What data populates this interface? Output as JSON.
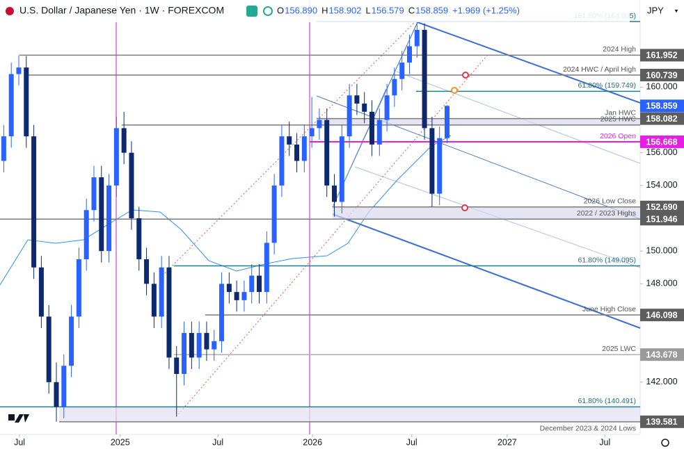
{
  "header": {
    "title": "U.S. Dollar / Japanese Yen · 1W · FOREXCOM",
    "ohlc": [
      {
        "key": "O",
        "value": "156.890"
      },
      {
        "key": "H",
        "value": "158.902"
      },
      {
        "key": "L",
        "value": "156.579"
      },
      {
        "key": "C",
        "value": "158.859"
      }
    ],
    "change": "+1.969 (+1.25%)",
    "currency": "JPY"
  },
  "chart_data": {
    "type": "candlestick",
    "open": [
      155.5,
      157,
      160.8,
      161.2,
      157,
      149,
      146,
      142,
      140.5,
      143,
      146,
      149.5,
      152.5,
      154.5,
      150,
      154,
      157.5,
      156,
      152,
      149.5,
      148,
      146,
      149,
      143.5,
      142.5,
      145,
      143.5,
      145,
      144,
      144.5,
      148,
      147.5,
      147,
      147.5,
      148.5,
      147.5,
      150.5,
      154,
      157,
      156.5,
      155.5,
      157,
      157.5,
      158,
      154,
      153,
      157,
      159.5,
      159,
      158.5,
      156.5,
      158,
      159.5,
      160.5,
      161.5,
      162.5,
      163.5,
      157.5,
      153.5,
      156.89
    ],
    "high": [
      157.7,
      161.5,
      161.952,
      161.9,
      157.7,
      149.7,
      146.7,
      143.2,
      143.7,
      146.7,
      150.2,
      153.2,
      155.2,
      155.2,
      154.7,
      158.2,
      158.5,
      156.7,
      152.7,
      150.2,
      148.7,
      149.7,
      149.7,
      144.2,
      145.7,
      145.7,
      145.7,
      145.7,
      145.2,
      148.7,
      148.7,
      148.2,
      148.2,
      149.2,
      149.2,
      151.2,
      154.7,
      157.7,
      157.9,
      157.2,
      157.7,
      159.4,
      158.7,
      158.7,
      154.7,
      157.7,
      160.2,
      160.2,
      159.7,
      159.2,
      158.7,
      160.2,
      161.2,
      162.2,
      163.2,
      164.005,
      163.9,
      158.2,
      157.6,
      158.902
    ],
    "low": [
      154.8,
      156.3,
      160.1,
      156.3,
      148.3,
      145.3,
      141.3,
      139.581,
      139.8,
      142.3,
      145.3,
      148.8,
      151.8,
      149.3,
      149.3,
      153.3,
      155.3,
      151.3,
      148.8,
      147.3,
      145.3,
      145.3,
      142.8,
      139.9,
      141.8,
      142.8,
      142.8,
      143.3,
      143.3,
      143.8,
      146.8,
      146.3,
      146.3,
      146.8,
      146.8,
      146.8,
      149.8,
      153.3,
      155.8,
      154.8,
      154.8,
      156.3,
      156.8,
      153.3,
      152.1,
      152.3,
      156.3,
      158.3,
      157.8,
      155.8,
      155.8,
      157.3,
      158.8,
      159.8,
      160.8,
      161.8,
      156.8,
      152.7,
      152.8,
      156.579
    ],
    "close": [
      157,
      160.8,
      161.2,
      157,
      149,
      146,
      142,
      140.5,
      143,
      146,
      149.5,
      152.5,
      154.5,
      150,
      154,
      157.5,
      156,
      152,
      149.5,
      148,
      146,
      149,
      143.5,
      142.5,
      145,
      143.5,
      145,
      144,
      144.5,
      148,
      147.5,
      147,
      147.5,
      148.5,
      147.5,
      150.5,
      154,
      157,
      156.5,
      155.5,
      157,
      157.5,
      158,
      154,
      153,
      157,
      159.5,
      159,
      158.5,
      156.5,
      158,
      159.5,
      160.5,
      161.5,
      162.5,
      163.5,
      157.5,
      153.5,
      156.89,
      158.859
    ],
    "up_color": "#2962ff",
    "down_color": "#0d2a6e",
    "xlim": [
      -0.5,
      84.7
    ],
    "xticks": [
      {
        "value": 2.1,
        "label": "Jul"
      },
      {
        "value": 15.5,
        "label": "2025"
      },
      {
        "value": 28.5,
        "label": "Jul"
      },
      {
        "value": 41.1,
        "label": "2026"
      },
      {
        "value": 54.3,
        "label": "Jul"
      },
      {
        "value": 67,
        "label": "2027"
      },
      {
        "value": 80,
        "label": "Jul"
      }
    ],
    "ylim": [
      138.81,
      165.32
    ],
    "yticks": [
      {
        "value": 142,
        "label": "142.000"
      },
      {
        "value": 148,
        "label": "148.000"
      },
      {
        "value": 150,
        "label": "150.000"
      },
      {
        "value": 154,
        "label": "154.000"
      },
      {
        "value": 156,
        "label": "156.000"
      },
      {
        "value": 160,
        "label": "160.000"
      }
    ],
    "levels": [
      {
        "value": 164.005,
        "label": "161.80% (164.005)",
        "color": "#1e7f8c"
      },
      {
        "value": 161.952,
        "label": "2024 High",
        "color": "#7b7b7b",
        "tag": "161.952"
      },
      {
        "value": 160.739,
        "label": "2024 HWC / April High",
        "color": "#7b7b7b",
        "tag": "160.739"
      },
      {
        "value": 159.749,
        "label": "61.80% (159.749)",
        "color": "#1e7f8c"
      },
      {
        "value": 158.082,
        "label": "Jan HWC",
        "color": "#7b7b7b",
        "tag": "158.082"
      },
      {
        "value": 157.69,
        "label": "2025 HWC",
        "color": "#7b7b7b"
      },
      {
        "value": 156.668,
        "label": "2026 Open",
        "color": "#e91ee6",
        "tag": "156.668"
      },
      {
        "value": 152.69,
        "label": "2026 Low Close",
        "color": "#7b7b7b",
        "tag": "152.690"
      },
      {
        "value": 151.946,
        "label": "2022 / 2023 Highs",
        "color": "#7b7b7b",
        "tag": "151.946"
      },
      {
        "value": 149.095,
        "label": "61.80% (149.095)",
        "color": "#1e7f8c"
      },
      {
        "value": 146.098,
        "label": "June High Close",
        "color": "#7b7b7b",
        "tag": "146.098"
      },
      {
        "value": 143.678,
        "label": "2025 LWC",
        "color": "#b0b0b0",
        "tag": "143.678"
      },
      {
        "value": 140.491,
        "label": "61.80% (140.491)",
        "color": "#1e7f8c"
      },
      {
        "value": 139.581,
        "label": "December 2023 & 2024 Lows",
        "color": "#7b7b7b",
        "tag": "139.581"
      }
    ]
  }
}
